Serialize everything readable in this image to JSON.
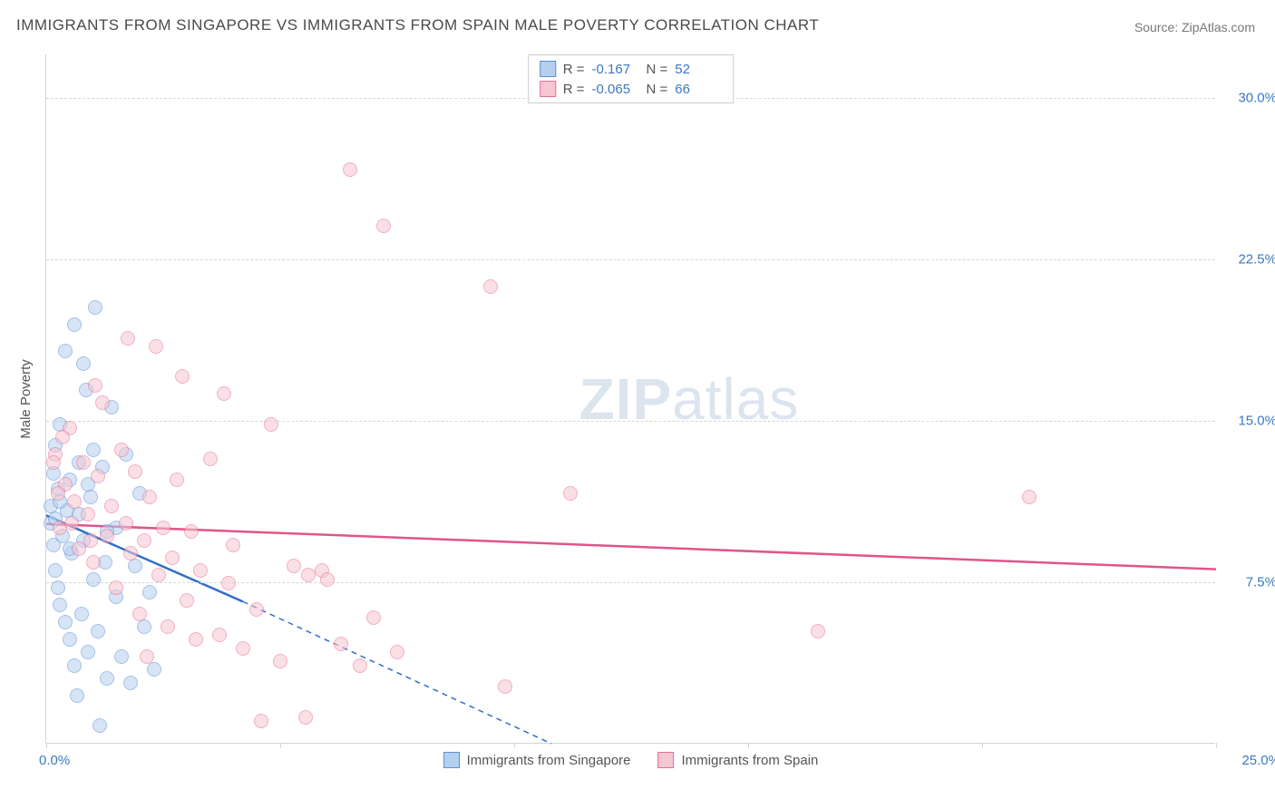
{
  "title": "IMMIGRANTS FROM SINGAPORE VS IMMIGRANTS FROM SPAIN MALE POVERTY CORRELATION CHART",
  "source": "Source: ZipAtlas.com",
  "y_axis_label": "Male Poverty",
  "watermark": {
    "bold": "ZIP",
    "rest": "atlas"
  },
  "chart": {
    "type": "scatter",
    "xlim": [
      0,
      25
    ],
    "ylim": [
      0,
      32
    ],
    "x_ticks": [
      0,
      5,
      10,
      15,
      20,
      25
    ],
    "x_tick_labels": {
      "min": "0.0%",
      "max": "25.0%"
    },
    "y_ticks": [
      7.5,
      15.0,
      22.5,
      30.0
    ],
    "y_tick_labels": [
      "7.5%",
      "15.0%",
      "22.5%",
      "30.0%"
    ],
    "grid_color": "#d8d8d8",
    "axis_color": "#d5d5d5",
    "background_color": "#ffffff",
    "tick_label_color": "#3b78c4",
    "tick_label_fontsize": 15,
    "title_fontsize": 17,
    "title_color": "#4a4a4a",
    "marker_radius": 8,
    "marker_opacity": 0.55
  },
  "series": [
    {
      "name": "Immigrants from Singapore",
      "color_fill": "#b5cfef",
      "color_stroke": "#5a8fd6",
      "trend_color": "#2f6fc9",
      "R": "-0.167",
      "N": "52",
      "trend": {
        "x1": 0,
        "y1": 10.6,
        "x2": 4.2,
        "y2": 6.6,
        "dashed_extend_to_x": 10.8,
        "dashed_extend_to_y": 0
      },
      "points": [
        [
          0.1,
          10.2
        ],
        [
          0.1,
          11.0
        ],
        [
          0.15,
          9.2
        ],
        [
          0.15,
          12.5
        ],
        [
          0.2,
          8.0
        ],
        [
          0.2,
          13.8
        ],
        [
          0.25,
          7.2
        ],
        [
          0.25,
          11.8
        ],
        [
          0.3,
          6.4
        ],
        [
          0.3,
          14.8
        ],
        [
          0.35,
          9.6
        ],
        [
          0.4,
          5.6
        ],
        [
          0.4,
          18.2
        ],
        [
          0.45,
          10.8
        ],
        [
          0.5,
          4.8
        ],
        [
          0.5,
          12.2
        ],
        [
          0.55,
          8.8
        ],
        [
          0.6,
          19.4
        ],
        [
          0.6,
          3.6
        ],
        [
          0.7,
          13.0
        ],
        [
          0.75,
          6.0
        ],
        [
          0.8,
          17.6
        ],
        [
          0.8,
          9.4
        ],
        [
          0.9,
          4.2
        ],
        [
          0.95,
          11.4
        ],
        [
          1.0,
          7.6
        ],
        [
          1.05,
          20.2
        ],
        [
          1.1,
          5.2
        ],
        [
          1.2,
          12.8
        ],
        [
          1.25,
          8.4
        ],
        [
          1.3,
          3.0
        ],
        [
          1.4,
          15.6
        ],
        [
          1.5,
          6.8
        ],
        [
          1.5,
          10.0
        ],
        [
          1.6,
          4.0
        ],
        [
          1.7,
          13.4
        ],
        [
          1.8,
          2.8
        ],
        [
          1.9,
          8.2
        ],
        [
          2.0,
          11.6
        ],
        [
          2.1,
          5.4
        ],
        [
          2.2,
          7.0
        ],
        [
          2.3,
          3.4
        ],
        [
          1.15,
          0.8
        ],
        [
          0.65,
          2.2
        ],
        [
          0.85,
          16.4
        ],
        [
          0.2,
          10.4
        ],
        [
          0.3,
          11.2
        ],
        [
          0.5,
          9.0
        ],
        [
          0.7,
          10.6
        ],
        [
          0.9,
          12.0
        ],
        [
          1.0,
          13.6
        ],
        [
          1.3,
          9.8
        ]
      ]
    },
    {
      "name": "Immigrants from Spain",
      "color_fill": "#f6c6d1",
      "color_stroke": "#e66f94",
      "trend_color": "#e0558a",
      "R": "-0.065",
      "N": "66",
      "trend": {
        "x1": 0,
        "y1": 10.2,
        "x2": 25,
        "y2": 8.1
      },
      "points": [
        [
          0.2,
          13.4
        ],
        [
          0.3,
          10.0
        ],
        [
          0.4,
          12.0
        ],
        [
          0.5,
          14.6
        ],
        [
          0.6,
          11.2
        ],
        [
          0.7,
          9.0
        ],
        [
          0.8,
          13.0
        ],
        [
          0.9,
          10.6
        ],
        [
          1.0,
          8.4
        ],
        [
          1.1,
          12.4
        ],
        [
          1.2,
          15.8
        ],
        [
          1.3,
          9.6
        ],
        [
          1.4,
          11.0
        ],
        [
          1.5,
          7.2
        ],
        [
          1.6,
          13.6
        ],
        [
          1.7,
          10.2
        ],
        [
          1.75,
          18.8
        ],
        [
          1.8,
          8.8
        ],
        [
          1.9,
          12.6
        ],
        [
          2.0,
          6.0
        ],
        [
          2.1,
          9.4
        ],
        [
          2.2,
          11.4
        ],
        [
          2.35,
          18.4
        ],
        [
          2.4,
          7.8
        ],
        [
          2.5,
          10.0
        ],
        [
          2.6,
          5.4
        ],
        [
          2.7,
          8.6
        ],
        [
          2.8,
          12.2
        ],
        [
          2.9,
          17.0
        ],
        [
          3.0,
          6.6
        ],
        [
          3.1,
          9.8
        ],
        [
          3.2,
          4.8
        ],
        [
          3.3,
          8.0
        ],
        [
          3.5,
          13.2
        ],
        [
          3.7,
          5.0
        ],
        [
          3.8,
          16.2
        ],
        [
          3.9,
          7.4
        ],
        [
          4.0,
          9.2
        ],
        [
          4.2,
          4.4
        ],
        [
          4.5,
          6.2
        ],
        [
          4.6,
          1.0
        ],
        [
          4.8,
          14.8
        ],
        [
          5.0,
          3.8
        ],
        [
          5.3,
          8.2
        ],
        [
          5.55,
          1.2
        ],
        [
          5.6,
          7.8
        ],
        [
          5.9,
          8.0
        ],
        [
          6.0,
          7.6
        ],
        [
          6.3,
          4.6
        ],
        [
          6.5,
          26.6
        ],
        [
          6.7,
          3.6
        ],
        [
          7.0,
          5.8
        ],
        [
          7.2,
          24.0
        ],
        [
          7.5,
          4.2
        ],
        [
          9.5,
          21.2
        ],
        [
          9.8,
          2.6
        ],
        [
          11.2,
          11.6
        ],
        [
          16.5,
          5.2
        ],
        [
          21.0,
          11.4
        ],
        [
          0.15,
          13.0
        ],
        [
          0.35,
          14.2
        ],
        [
          1.05,
          16.6
        ],
        [
          2.15,
          4.0
        ],
        [
          0.25,
          11.6
        ],
        [
          0.55,
          10.2
        ],
        [
          0.95,
          9.4
        ]
      ]
    }
  ],
  "legend_top": {
    "r_label": "R =",
    "n_label": "N ="
  },
  "legend_bottom": {
    "items": [
      "Immigrants from Singapore",
      "Immigrants from Spain"
    ]
  }
}
